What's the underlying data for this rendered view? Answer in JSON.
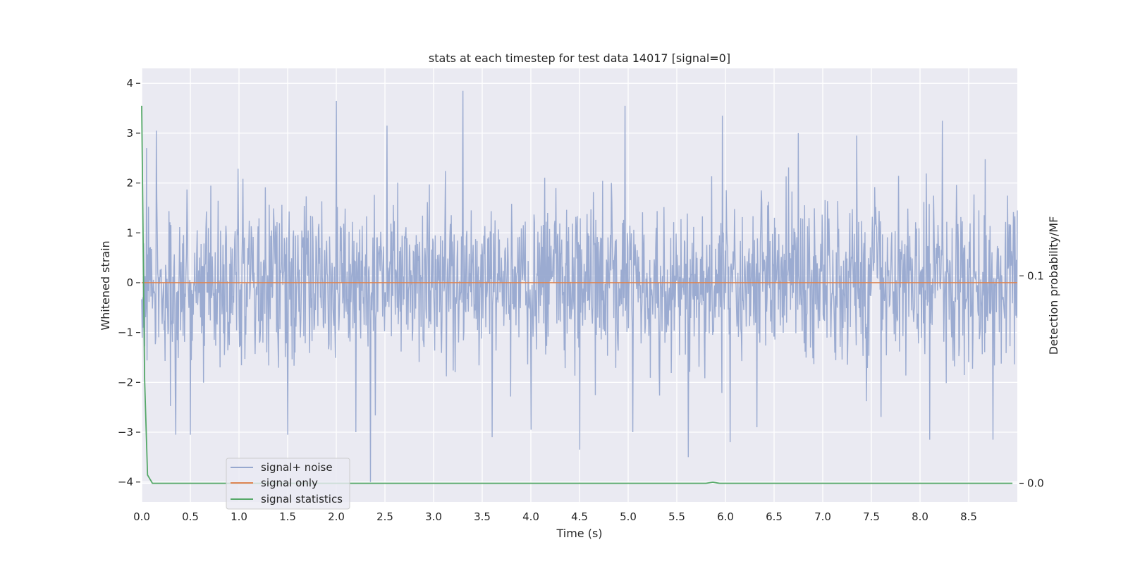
{
  "chart_data": {
    "type": "line",
    "title": "stats at each timestep for test data 14017 [signal=0]",
    "xlabel": "Time (s)",
    "ylabel": "Whitened strain",
    "ylabel_right": "Detection probability/MF",
    "xlim": [
      0.0,
      9.0
    ],
    "ylim": [
      -4.4,
      4.3
    ],
    "ylim_right": [
      -0.009,
      0.2
    ],
    "x_ticks": [
      0.0,
      0.5,
      1.0,
      1.5,
      2.0,
      2.5,
      3.0,
      3.5,
      4.0,
      4.5,
      5.0,
      5.5,
      6.0,
      6.5,
      7.0,
      7.5,
      8.0,
      8.5
    ],
    "x_tick_labels": [
      "0.0",
      "0.5",
      "1.0",
      "1.5",
      "2.0",
      "2.5",
      "3.0",
      "3.5",
      "4.0",
      "4.5",
      "5.0",
      "5.5",
      "6.0",
      "6.5",
      "7.0",
      "7.5",
      "8.0",
      "8.5"
    ],
    "y_ticks": [
      4,
      3,
      2,
      1,
      0,
      -1,
      -2,
      -3,
      -4
    ],
    "y_tick_labels": [
      "4",
      "3",
      "2",
      "1",
      "0",
      "−1",
      "−2",
      "−3",
      "−4"
    ],
    "y_right_ticks": [
      0.1,
      0.0
    ],
    "y_right_tick_labels": [
      "0.1",
      "0.0"
    ],
    "grid": true,
    "legend_position": "lower-left",
    "series": [
      {
        "name": "signal+ noise",
        "axis": "left",
        "color": "#97a8cf",
        "noise_std": 0.8,
        "t_start": 0.0,
        "t_end": 9.0,
        "num_samples": 1800,
        "peaks": [
          {
            "x": 0.05,
            "y": 2.7
          },
          {
            "x": 0.15,
            "y": 3.05
          },
          {
            "x": 0.35,
            "y": -3.05
          },
          {
            "x": 0.5,
            "y": -3.05
          },
          {
            "x": 1.5,
            "y": -3.05
          },
          {
            "x": 2.0,
            "y": 3.65
          },
          {
            "x": 2.2,
            "y": -3.0
          },
          {
            "x": 2.35,
            "y": -4.0
          },
          {
            "x": 2.52,
            "y": 3.15
          },
          {
            "x": 3.3,
            "y": 3.85
          },
          {
            "x": 3.6,
            "y": -3.1
          },
          {
            "x": 4.5,
            "y": -3.35
          },
          {
            "x": 4.97,
            "y": 3.55
          },
          {
            "x": 5.05,
            "y": -3.0
          },
          {
            "x": 5.62,
            "y": -3.5
          },
          {
            "x": 5.97,
            "y": 3.35
          },
          {
            "x": 6.05,
            "y": -3.2
          },
          {
            "x": 8.23,
            "y": 3.25
          },
          {
            "x": 8.1,
            "y": -3.15
          },
          {
            "x": 8.75,
            "y": -3.15
          },
          {
            "x": 4.0,
            "y": -2.95
          },
          {
            "x": 6.75,
            "y": 3.0
          },
          {
            "x": 7.35,
            "y": 2.95
          }
        ]
      },
      {
        "name": "signal only",
        "axis": "left",
        "color": "#dd8452",
        "x": [
          0.0,
          9.0
        ],
        "y": [
          0.0,
          0.0
        ]
      },
      {
        "name": "signal statistics",
        "axis": "right",
        "color": "#55a868",
        "x": [
          0.0,
          0.03,
          0.06,
          0.11,
          0.5,
          2.0,
          5.8,
          5.87,
          5.94,
          8.95
        ],
        "y": [
          0.182,
          0.05,
          0.004,
          0.0,
          0.0,
          0.0,
          0.0,
          0.0005,
          0.0,
          0.0
        ]
      }
    ]
  }
}
